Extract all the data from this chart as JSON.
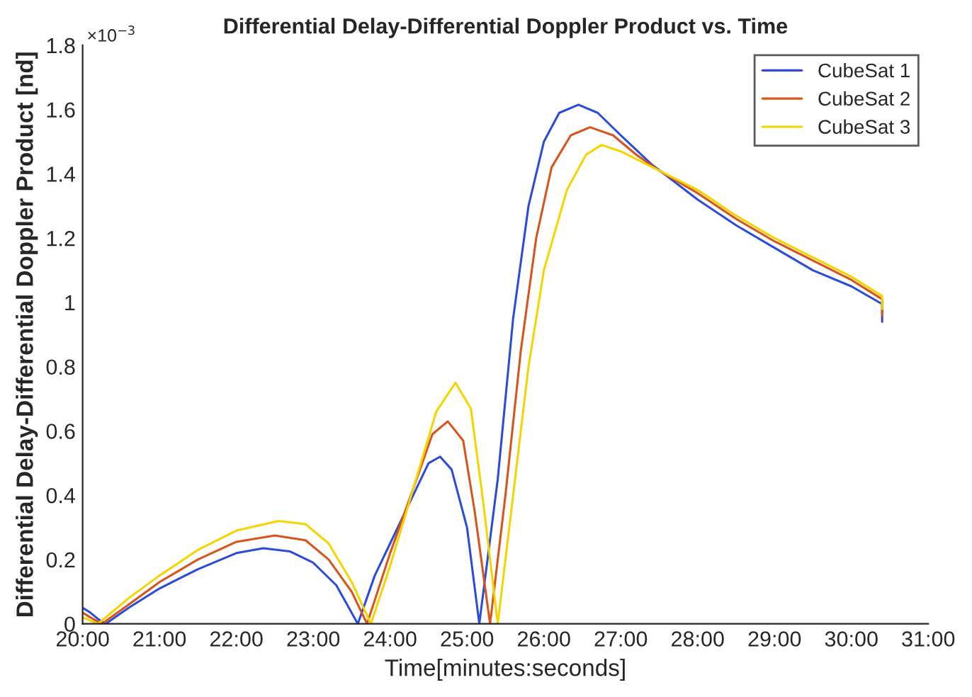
{
  "chart_data": {
    "type": "line",
    "title": "Differential Delay-Differential Doppler Product vs. Time",
    "xlabel": "Time[minutes:seconds]",
    "ylabel": "Differential Delay-Differential Doppler Product [nd]",
    "annotations": [
      "×10$^{−3}$"
    ],
    "xlim": [
      20,
      31
    ],
    "xticks": [
      {
        "value": 20,
        "label": "20:00"
      },
      {
        "value": 21,
        "label": "21:00"
      },
      {
        "value": 22,
        "label": "22:00"
      },
      {
        "value": 23,
        "label": "23:00"
      },
      {
        "value": 24,
        "label": "24:00"
      },
      {
        "value": 25,
        "label": "25:00"
      },
      {
        "value": 26,
        "label": "26:00"
      },
      {
        "value": 27,
        "label": "27:00"
      },
      {
        "value": 28,
        "label": "28:00"
      },
      {
        "value": 29,
        "label": "29:00"
      },
      {
        "value": 30,
        "label": "30:00"
      },
      {
        "value": 31,
        "label": "31:00"
      }
    ],
    "ylim": [
      0,
      1.8
    ],
    "yticks": [
      0,
      0.2,
      0.4,
      0.6,
      0.8,
      1,
      1.2,
      1.4,
      1.6,
      1.8
    ],
    "grid": false,
    "legend": "top right",
    "line_style": "solid",
    "series": [
      {
        "name": "CubeSat 1",
        "color": "#2b4bd9",
        "x": [
          20.0,
          20.1,
          20.2,
          20.3,
          20.6,
          21.0,
          21.5,
          22.0,
          22.35,
          22.7,
          23.0,
          23.3,
          23.58,
          23.8,
          24.0,
          24.3,
          24.5,
          24.65,
          24.8,
          25.0,
          25.16,
          25.4,
          25.6,
          25.8,
          26.0,
          26.2,
          26.45,
          26.7,
          27.0,
          27.4,
          28.0,
          28.5,
          29.0,
          29.5,
          30.0,
          30.4,
          30.4
        ],
        "values": [
          0.05,
          0.035,
          0.015,
          0,
          0.05,
          0.11,
          0.17,
          0.22,
          0.235,
          0.225,
          0.19,
          0.12,
          0,
          0.15,
          0.25,
          0.4,
          0.5,
          0.52,
          0.48,
          0.3,
          0,
          0.45,
          0.95,
          1.3,
          1.5,
          1.59,
          1.615,
          1.59,
          1.52,
          1.43,
          1.32,
          1.24,
          1.17,
          1.1,
          1.05,
          0.995,
          0.94
        ]
      },
      {
        "name": "CubeSat 2",
        "color": "#d9541a",
        "x": [
          20.0,
          20.1,
          20.25,
          20.6,
          21.0,
          21.5,
          22.0,
          22.5,
          22.9,
          23.2,
          23.5,
          23.7,
          24.0,
          24.3,
          24.55,
          24.75,
          24.95,
          25.1,
          25.3,
          25.5,
          25.7,
          25.9,
          26.1,
          26.35,
          26.6,
          26.9,
          27.2,
          27.5,
          28.0,
          28.5,
          29.0,
          29.5,
          30.0,
          30.4,
          30.4
        ],
        "values": [
          0.035,
          0.02,
          0,
          0.06,
          0.13,
          0.2,
          0.255,
          0.275,
          0.26,
          0.2,
          0.1,
          0,
          0.22,
          0.42,
          0.59,
          0.63,
          0.57,
          0.35,
          0,
          0.4,
          0.85,
          1.2,
          1.42,
          1.52,
          1.545,
          1.52,
          1.46,
          1.41,
          1.34,
          1.26,
          1.19,
          1.13,
          1.07,
          1.01,
          0.96
        ]
      },
      {
        "name": "CubeSat 3",
        "color": "#f5d400",
        "x": [
          20.0,
          20.2,
          20.6,
          21.0,
          21.5,
          22.0,
          22.55,
          22.9,
          23.2,
          23.5,
          23.75,
          24.0,
          24.3,
          24.6,
          24.85,
          25.05,
          25.2,
          25.4,
          25.6,
          25.8,
          26.0,
          26.3,
          26.55,
          26.75,
          27.0,
          27.5,
          28.0,
          28.5,
          29.0,
          29.5,
          30.0,
          30.4,
          30.4
        ],
        "values": [
          0.02,
          0,
          0.08,
          0.15,
          0.23,
          0.29,
          0.32,
          0.31,
          0.25,
          0.13,
          0,
          0.18,
          0.42,
          0.66,
          0.75,
          0.67,
          0.4,
          0,
          0.4,
          0.8,
          1.1,
          1.35,
          1.46,
          1.49,
          1.47,
          1.41,
          1.35,
          1.27,
          1.2,
          1.14,
          1.08,
          1.02,
          0.98
        ]
      }
    ]
  }
}
